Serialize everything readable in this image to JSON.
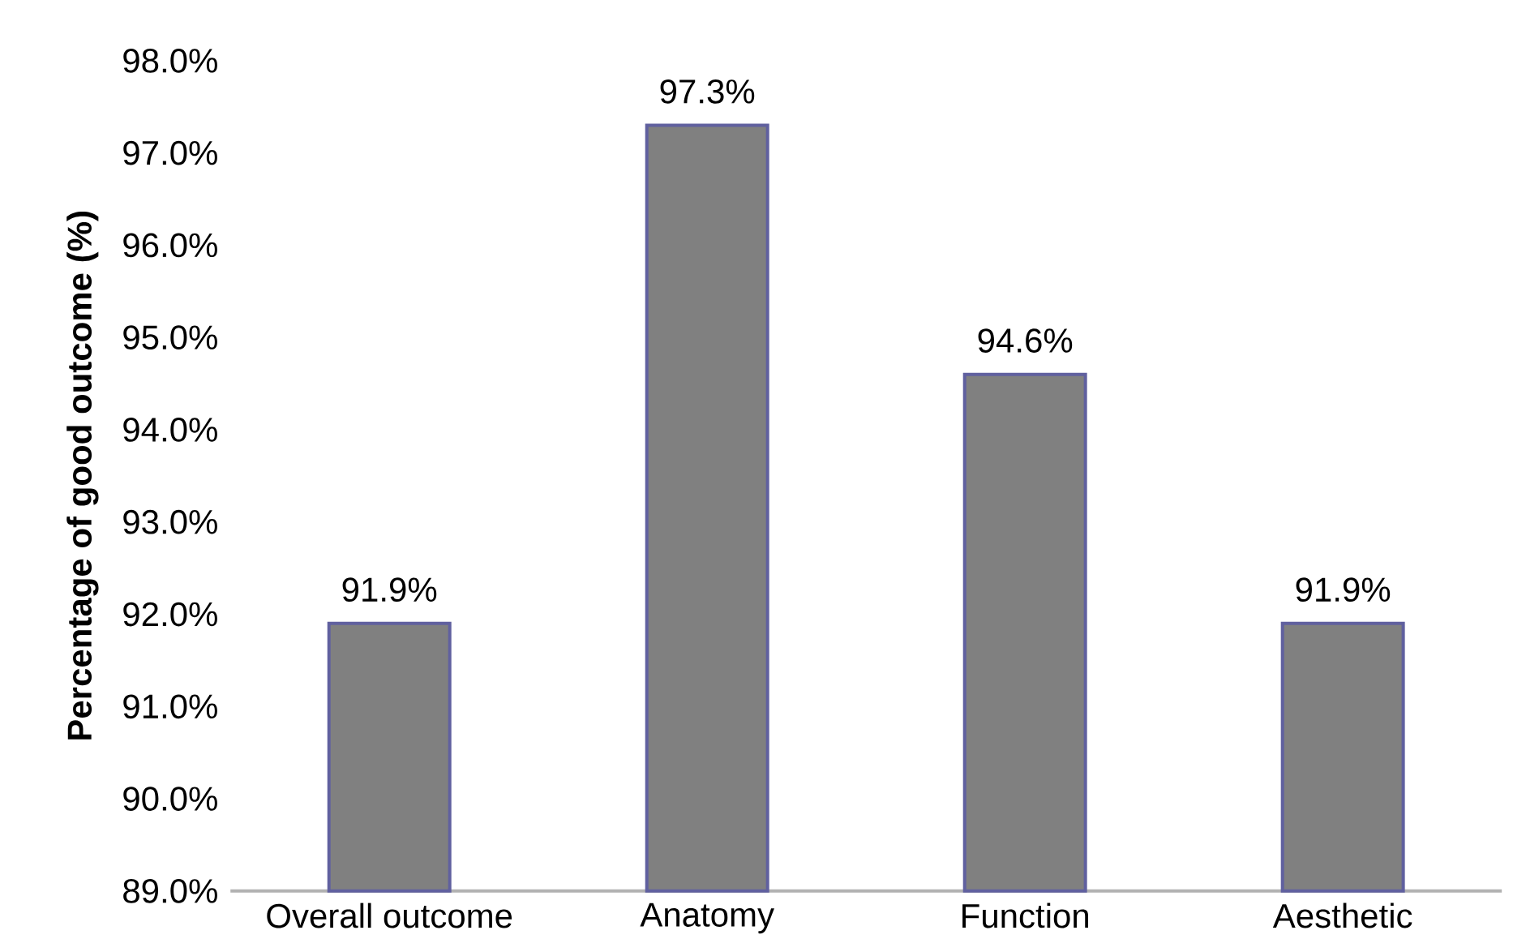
{
  "chart_data": {
    "type": "bar",
    "ylabel": "Percentage of good outcome (%)",
    "categories": [
      "Overall outcome",
      "Anatomy",
      "Function",
      "Aesthetic"
    ],
    "values": [
      91.9,
      97.3,
      94.6,
      91.9
    ],
    "value_labels": [
      "91.9%",
      "97.3%",
      "94.6%",
      "91.9%"
    ],
    "color": "#808080",
    "ylim": [
      89,
      98
    ],
    "yticks": [
      {
        "value": 89,
        "label": "89.0%"
      },
      {
        "value": 90,
        "label": "90.0%"
      },
      {
        "value": 91,
        "label": "91.0%"
      },
      {
        "value": 92,
        "label": "92.0%"
      },
      {
        "value": 93,
        "label": "93.0%"
      },
      {
        "value": 94,
        "label": "94.0%"
      },
      {
        "value": 95,
        "label": "95.0%"
      },
      {
        "value": 96,
        "label": "96.0%"
      },
      {
        "value": 97,
        "label": "97.0%"
      },
      {
        "value": 98,
        "label": "98.0%"
      }
    ]
  }
}
